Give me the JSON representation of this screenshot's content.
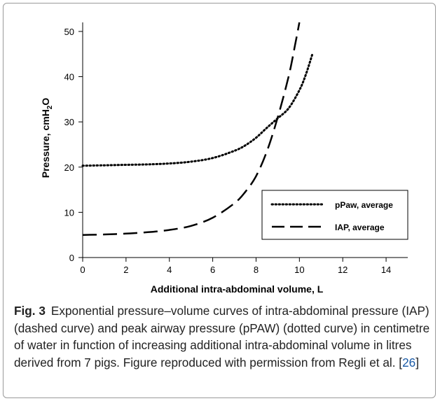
{
  "chart_data": {
    "type": "line",
    "xlabel": "Additional intra-abdominal volume, L",
    "ylabel": "Pressure, cmH",
    "ylabel_sub": "2",
    "ylabel_tail": "O",
    "xlim": [
      0,
      15
    ],
    "ylim": [
      0,
      52
    ],
    "xticks": [
      "0",
      "2",
      "4",
      "6",
      "8",
      "10",
      "12",
      "14"
    ],
    "yticks": [
      "0",
      "10",
      "20",
      "30",
      "40",
      "50"
    ],
    "grid": false,
    "legend_position": "lower-right",
    "series": [
      {
        "name": "pPaw, average",
        "style": "dotted",
        "x": [
          0,
          1,
          2,
          3,
          4,
          5,
          6,
          7,
          7.5,
          8,
          8.5,
          9,
          9.5,
          10,
          10.3,
          10.6
        ],
        "y": [
          20.3,
          20.4,
          20.5,
          20.6,
          20.8,
          21.2,
          22.0,
          23.6,
          24.8,
          26.5,
          28.7,
          30.8,
          33.0,
          37.0,
          40.5,
          45.0
        ]
      },
      {
        "name": "IAP, average",
        "style": "dashed",
        "x": [
          0,
          1,
          2,
          3,
          4,
          5,
          6,
          7,
          7.5,
          8,
          8.5,
          9,
          9.5,
          9.8,
          10.0
        ],
        "y": [
          5.0,
          5.1,
          5.3,
          5.6,
          6.1,
          7.0,
          8.8,
          12.0,
          14.5,
          18.0,
          23.5,
          31.0,
          40.0,
          47.0,
          52.0
        ]
      }
    ]
  },
  "caption": {
    "label": "Fig. 3",
    "text": "Exponential pressure–volume curves of intra-abdominal pressure (IAP) (dashed curve) and peak airway pressure (pPAW) (dotted curve) in centimetre of water in function of increasing additional intra-abdominal volume in litres derived from 7 pigs. Figure reproduced with permission from Regli et al. [",
    "ref": "26",
    "tail": "]"
  },
  "colors": {
    "line": "#000000",
    "caption_text": "#222222",
    "reference_link": "#1a5aa6",
    "frame_border": "#9a9a9a"
  }
}
